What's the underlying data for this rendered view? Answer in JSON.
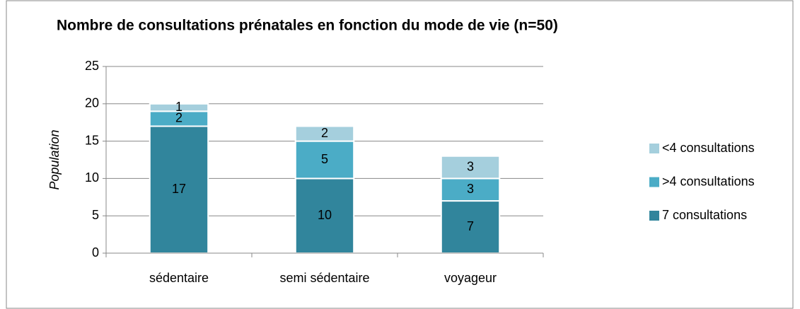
{
  "chart_data": {
    "type": "stacked_bar",
    "title": "Nombre de consultations prénatales en fonction du mode de vie (n=50)",
    "y_label": "Population",
    "categories": [
      "sédentaire",
      "semi sédentaire",
      "voyageur"
    ],
    "series": [
      {
        "name": "7 consultations",
        "color": "#31859c",
        "values": [
          17,
          10,
          7
        ]
      },
      {
        "name": ">4 consultations",
        "color": "#4bacc6",
        "values": [
          2,
          5,
          3
        ]
      },
      {
        "name": "<4 consultations",
        "color": "#a5cfdd",
        "values": [
          1,
          2,
          3
        ]
      }
    ],
    "ylim": [
      0,
      25
    ],
    "yticks": [
      0,
      5,
      10,
      15,
      20,
      25
    ],
    "grid": true,
    "legend": "right"
  }
}
